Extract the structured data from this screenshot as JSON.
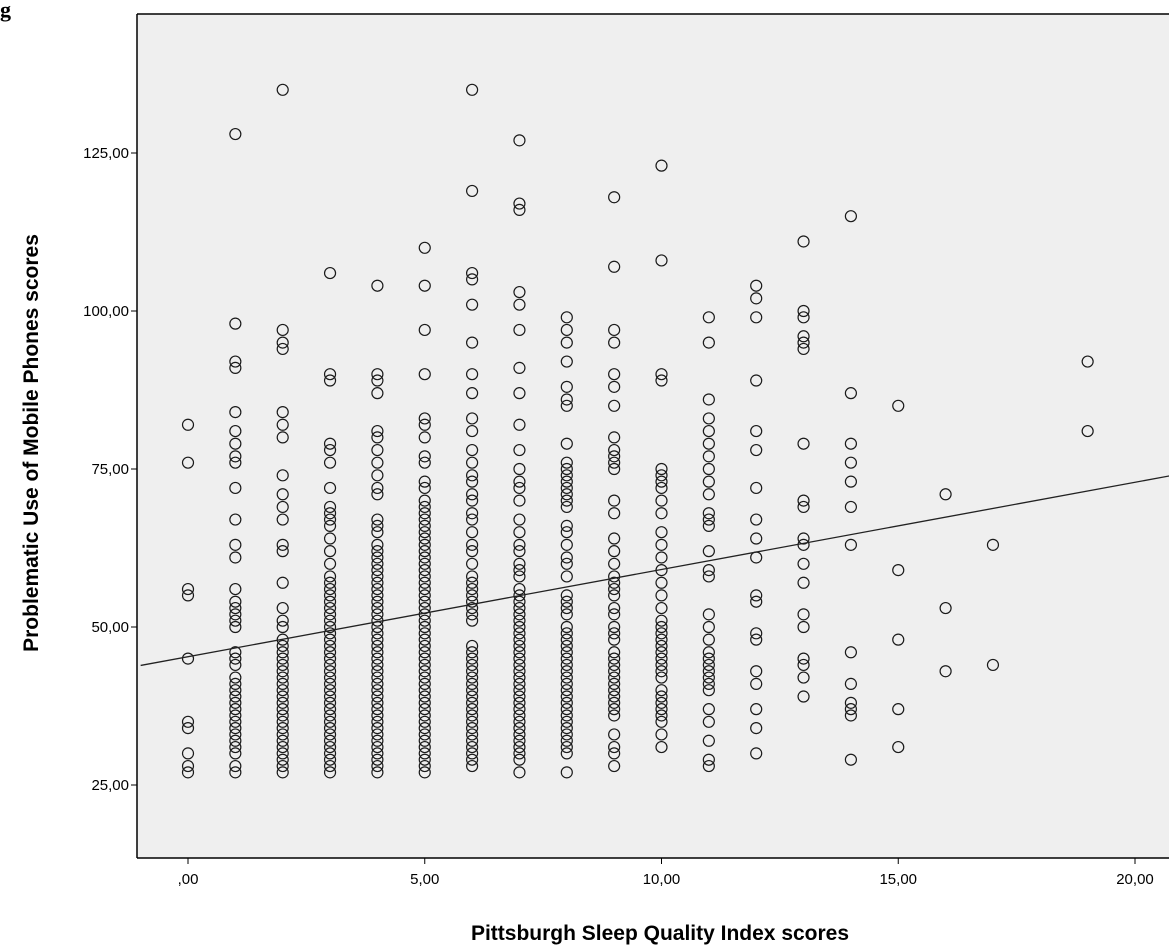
{
  "figure": {
    "title_fragment": "g"
  },
  "chart_data": {
    "type": "scatter",
    "title": "",
    "xlabel": "Pittsburgh Sleep Quality Index scores",
    "ylabel": "Problematic Use of Mobile Phones scores",
    "xlim": [
      -1,
      21
    ],
    "ylim": [
      12,
      147
    ],
    "xticks": [
      0,
      5,
      10,
      15,
      20
    ],
    "xtick_labels": [
      ",00",
      "5,00",
      "10,00",
      "15,00",
      "20,00"
    ],
    "yticks": [
      25,
      50,
      75,
      100,
      125
    ],
    "ytick_labels": [
      "25,00",
      "50,00",
      "75,00",
      "100,00",
      "125,00"
    ],
    "grid": false,
    "plot_background": "#efefef",
    "marker_color": "#1a1a1a",
    "fit_line": {
      "type": "linear",
      "intercept": 45.3,
      "slope": 1.38
    },
    "points_by_x": {
      "0": [
        82,
        76,
        56,
        55,
        45,
        35,
        34,
        30,
        28,
        27
      ],
      "1": [
        128,
        98,
        92,
        91,
        84,
        81,
        79,
        77,
        76,
        72,
        67,
        63,
        61,
        56,
        54,
        53,
        52,
        51,
        50,
        46,
        45,
        44,
        42,
        41,
        40,
        39,
        38,
        37,
        36,
        35,
        34,
        33,
        32,
        31,
        30,
        28,
        27
      ],
      "2": [
        135,
        97,
        95,
        94,
        84,
        82,
        80,
        74,
        71,
        69,
        67,
        63,
        62,
        57,
        53,
        51,
        50,
        48,
        47,
        46,
        45,
        44,
        43,
        42,
        41,
        40,
        39,
        38,
        37,
        36,
        35,
        34,
        33,
        32,
        31,
        30,
        29,
        28,
        27
      ],
      "3": [
        106,
        90,
        89,
        79,
        78,
        76,
        72,
        69,
        68,
        67,
        66,
        64,
        62,
        60,
        58,
        57,
        56,
        55,
        54,
        53,
        52,
        51,
        50,
        49,
        48,
        47,
        46,
        45,
        44,
        43,
        42,
        41,
        40,
        39,
        38,
        37,
        36,
        35,
        34,
        33,
        32,
        31,
        30,
        29,
        28,
        27
      ],
      "4": [
        104,
        90,
        89,
        87,
        81,
        80,
        78,
        76,
        74,
        72,
        71,
        67,
        66,
        65,
        63,
        62,
        61,
        60,
        59,
        58,
        57,
        56,
        55,
        54,
        53,
        52,
        51,
        50,
        49,
        48,
        47,
        46,
        45,
        44,
        43,
        42,
        41,
        40,
        39,
        38,
        37,
        36,
        35,
        34,
        33,
        32,
        31,
        30,
        29,
        28,
        27
      ],
      "5": [
        110,
        104,
        97,
        90,
        83,
        82,
        80,
        77,
        76,
        73,
        72,
        70,
        69,
        68,
        67,
        66,
        65,
        64,
        63,
        62,
        61,
        60,
        59,
        58,
        57,
        56,
        55,
        54,
        53,
        52,
        51,
        50,
        49,
        48,
        47,
        46,
        45,
        44,
        43,
        42,
        41,
        40,
        39,
        38,
        37,
        36,
        35,
        34,
        33,
        32,
        31,
        30,
        29,
        28,
        27
      ],
      "6": [
        135,
        119,
        106,
        105,
        101,
        95,
        90,
        87,
        83,
        81,
        78,
        76,
        74,
        73,
        71,
        70,
        68,
        67,
        65,
        63,
        62,
        60,
        58,
        57,
        56,
        55,
        54,
        53,
        52,
        51,
        47,
        46,
        45,
        44,
        43,
        42,
        41,
        40,
        39,
        38,
        37,
        36,
        35,
        34,
        33,
        32,
        31,
        30,
        29,
        28
      ],
      "7": [
        127,
        117,
        116,
        103,
        101,
        97,
        91,
        87,
        82,
        78,
        75,
        73,
        72,
        70,
        67,
        65,
        63,
        62,
        60,
        59,
        58,
        56,
        55,
        54,
        53,
        52,
        51,
        50,
        49,
        48,
        47,
        46,
        45,
        44,
        43,
        42,
        41,
        40,
        39,
        38,
        37,
        36,
        35,
        34,
        33,
        32,
        31,
        30,
        29,
        27
      ],
      "8": [
        99,
        97,
        95,
        92,
        88,
        86,
        85,
        79,
        76,
        75,
        74,
        73,
        72,
        71,
        70,
        69,
        66,
        65,
        63,
        61,
        60,
        58,
        55,
        54,
        53,
        52,
        50,
        49,
        48,
        47,
        46,
        45,
        44,
        43,
        42,
        41,
        40,
        39,
        38,
        37,
        36,
        35,
        34,
        33,
        32,
        31,
        30,
        27
      ],
      "9": [
        118,
        107,
        97,
        95,
        90,
        88,
        85,
        80,
        78,
        77,
        76,
        75,
        70,
        68,
        64,
        62,
        60,
        58,
        57,
        56,
        55,
        53,
        52,
        50,
        49,
        48,
        46,
        45,
        44,
        43,
        42,
        41,
        40,
        39,
        38,
        37,
        36,
        33,
        31,
        30,
        28
      ],
      "10": [
        123,
        108,
        90,
        89,
        75,
        74,
        73,
        72,
        70,
        68,
        65,
        63,
        61,
        59,
        57,
        55,
        53,
        51,
        50,
        49,
        48,
        47,
        46,
        45,
        44,
        43,
        42,
        40,
        39,
        38,
        37,
        36,
        35,
        33,
        31
      ],
      "11": [
        99,
        95,
        86,
        83,
        81,
        79,
        77,
        75,
        73,
        71,
        68,
        67,
        66,
        62,
        59,
        58,
        52,
        50,
        48,
        46,
        45,
        44,
        43,
        42,
        41,
        40,
        37,
        35,
        32,
        29,
        28
      ],
      "12": [
        104,
        102,
        99,
        89,
        81,
        78,
        72,
        67,
        64,
        61,
        55,
        54,
        49,
        48,
        43,
        41,
        37,
        34,
        30
      ],
      "13": [
        111,
        100,
        99,
        96,
        95,
        94,
        79,
        70,
        69,
        64,
        63,
        60,
        57,
        52,
        50,
        45,
        44,
        42,
        39
      ],
      "14": [
        115,
        87,
        79,
        76,
        73,
        69,
        63,
        46,
        41,
        38,
        37,
        36,
        29
      ],
      "15": [
        85,
        59,
        48,
        37,
        31
      ],
      "16": [
        71,
        53,
        43
      ],
      "17": [
        63,
        44
      ],
      "19": [
        92,
        81
      ]
    }
  }
}
